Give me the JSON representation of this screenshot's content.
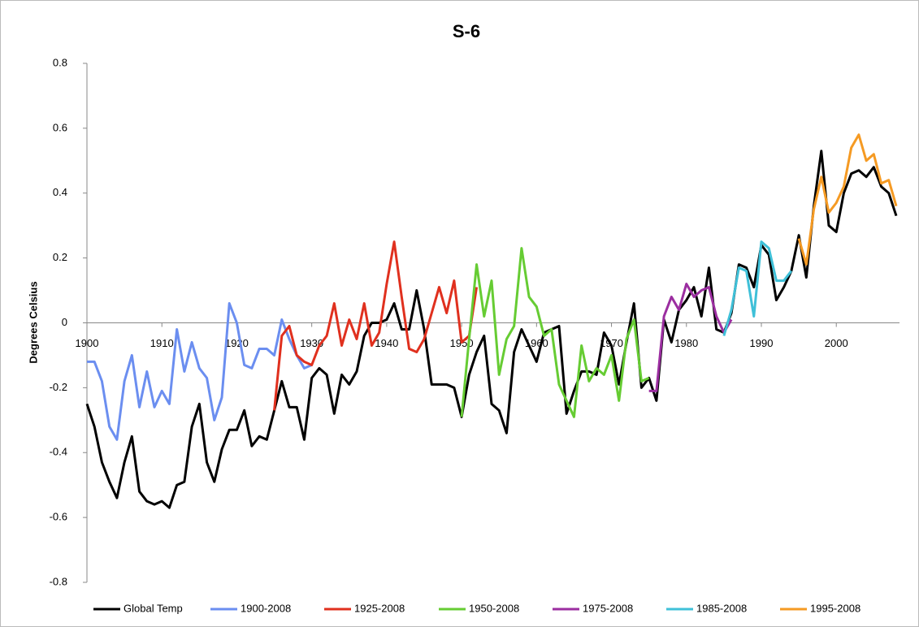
{
  "chart_data": {
    "type": "line",
    "title": "S-6",
    "y_label": "Degrees Celsius",
    "xlim": [
      1900,
      2008
    ],
    "xticks": [
      1900,
      1910,
      1920,
      1930,
      1940,
      1950,
      1960,
      1970,
      1980,
      1990,
      2000
    ],
    "ylim": [
      -0.8,
      0.8
    ],
    "yticks": [
      -0.8,
      -0.6,
      -0.4,
      -0.2,
      0,
      0.2,
      0.4,
      0.6,
      0.8
    ],
    "grid": false,
    "legend": "bottom",
    "x": [
      1900,
      1901,
      1902,
      1903,
      1904,
      1905,
      1906,
      1907,
      1908,
      1909,
      1910,
      1911,
      1912,
      1913,
      1914,
      1915,
      1916,
      1917,
      1918,
      1919,
      1920,
      1921,
      1922,
      1923,
      1924,
      1925,
      1926,
      1927,
      1928,
      1929,
      1930,
      1931,
      1932,
      1933,
      1934,
      1935,
      1936,
      1937,
      1938,
      1939,
      1940,
      1941,
      1942,
      1943,
      1944,
      1945,
      1946,
      1947,
      1948,
      1949,
      1950,
      1951,
      1952,
      1953,
      1954,
      1955,
      1956,
      1957,
      1958,
      1959,
      1960,
      1961,
      1962,
      1963,
      1964,
      1965,
      1966,
      1967,
      1968,
      1969,
      1970,
      1971,
      1972,
      1973,
      1974,
      1975,
      1976,
      1977,
      1978,
      1979,
      1980,
      1981,
      1982,
      1983,
      1984,
      1985,
      1986,
      1987,
      1988,
      1989,
      1990,
      1991,
      1992,
      1993,
      1994,
      1995,
      1996,
      1997,
      1998,
      1999,
      2000,
      2001,
      2002,
      2003,
      2004,
      2005,
      2006,
      2007,
      2008
    ],
    "series": [
      {
        "name": "Global Temp",
        "color": "#000000",
        "values": [
          -0.25,
          -0.32,
          -0.43,
          -0.49,
          -0.54,
          -0.43,
          -0.35,
          -0.52,
          -0.55,
          -0.56,
          -0.55,
          -0.57,
          -0.5,
          -0.49,
          -0.32,
          -0.25,
          -0.43,
          -0.49,
          -0.39,
          -0.33,
          -0.33,
          -0.27,
          -0.38,
          -0.35,
          -0.36,
          -0.27,
          -0.18,
          -0.26,
          -0.26,
          -0.36,
          -0.17,
          -0.14,
          -0.16,
          -0.28,
          -0.16,
          -0.19,
          -0.15,
          -0.04,
          0,
          0,
          0.01,
          0.06,
          -0.02,
          -0.02,
          0.1,
          -0.02,
          -0.19,
          -0.19,
          -0.19,
          -0.2,
          -0.29,
          -0.16,
          -0.09,
          -0.04,
          -0.25,
          -0.27,
          -0.34,
          -0.09,
          -0.02,
          -0.07,
          -0.12,
          -0.03,
          -0.02,
          -0.01,
          -0.28,
          -0.21,
          -0.15,
          -0.15,
          -0.16,
          -0.03,
          -0.07,
          -0.19,
          -0.06,
          0.06,
          -0.2,
          -0.17,
          -0.24,
          0.01,
          -0.06,
          0.04,
          0.07,
          0.11,
          0.02,
          0.17,
          -0.02,
          -0.03,
          0.03,
          0.18,
          0.17,
          0.11,
          0.24,
          0.21,
          0.07,
          0.11,
          0.16,
          0.27,
          0.14,
          0.36,
          0.53,
          0.3,
          0.28,
          0.4,
          0.46,
          0.47,
          0.45,
          0.48,
          0.42,
          0.4,
          0.33
        ]
      },
      {
        "name": "1900-2008",
        "color": "#6b8ef0",
        "values": [
          -0.12,
          -0.12,
          -0.18,
          -0.32,
          -0.36,
          -0.18,
          -0.1,
          -0.26,
          -0.15,
          -0.26,
          -0.21,
          -0.25,
          -0.02,
          -0.15,
          -0.06,
          -0.14,
          -0.17,
          -0.3,
          -0.23,
          0.06,
          0,
          -0.13,
          -0.14,
          -0.08,
          -0.08,
          -0.1,
          0.01,
          -0.05,
          -0.1,
          -0.14,
          -0.13,
          null,
          null,
          null,
          null,
          null,
          null,
          null,
          null,
          null,
          null,
          null,
          null,
          null,
          null,
          null,
          null,
          null,
          null,
          null,
          null,
          null,
          null,
          null,
          null,
          null,
          null,
          null,
          null,
          null,
          null,
          null,
          null,
          null,
          null,
          null,
          null,
          null,
          null,
          null,
          null,
          null,
          null,
          null,
          null,
          null,
          null,
          null,
          null,
          null,
          null,
          null,
          null,
          null,
          null,
          null,
          null,
          null,
          null,
          null,
          null,
          null,
          null,
          null,
          null,
          null,
          null,
          null,
          null,
          null,
          null,
          null,
          null,
          null,
          null,
          null,
          null,
          null,
          null
        ]
      },
      {
        "name": "1925-2008",
        "color": "#e0301e",
        "values": [
          null,
          null,
          null,
          null,
          null,
          null,
          null,
          null,
          null,
          null,
          null,
          null,
          null,
          null,
          null,
          null,
          null,
          null,
          null,
          null,
          null,
          null,
          null,
          null,
          null,
          -0.27,
          -0.04,
          -0.01,
          -0.1,
          -0.12,
          -0.13,
          -0.07,
          -0.04,
          0.06,
          -0.07,
          0.01,
          -0.05,
          0.06,
          -0.07,
          -0.03,
          0.12,
          0.25,
          0.08,
          -0.08,
          -0.09,
          -0.05,
          0.03,
          0.11,
          0.03,
          0.13,
          -0.06,
          -0.04,
          0.11,
          null,
          null,
          null,
          null,
          null,
          null,
          null,
          null,
          null,
          null,
          null,
          null,
          null,
          null,
          null,
          null,
          null,
          null,
          null,
          null,
          null,
          null,
          null,
          null,
          null,
          null,
          null,
          null,
          null,
          null,
          null,
          null,
          null,
          null,
          null,
          null,
          null,
          null,
          null,
          null,
          null,
          null,
          null,
          null,
          null,
          null,
          null,
          null,
          null,
          null,
          null,
          null,
          null,
          null,
          null,
          null
        ]
      },
      {
        "name": "1950-2008",
        "color": "#66cc33",
        "values": [
          null,
          null,
          null,
          null,
          null,
          null,
          null,
          null,
          null,
          null,
          null,
          null,
          null,
          null,
          null,
          null,
          null,
          null,
          null,
          null,
          null,
          null,
          null,
          null,
          null,
          null,
          null,
          null,
          null,
          null,
          null,
          null,
          null,
          null,
          null,
          null,
          null,
          null,
          null,
          null,
          null,
          null,
          null,
          null,
          null,
          null,
          null,
          null,
          null,
          null,
          -0.29,
          -0.05,
          0.18,
          0.02,
          0.13,
          -0.16,
          -0.05,
          -0.01,
          0.23,
          0.08,
          0.05,
          -0.04,
          -0.02,
          -0.19,
          -0.24,
          -0.29,
          -0.07,
          -0.18,
          -0.14,
          -0.16,
          -0.1,
          -0.24,
          -0.05,
          0.01,
          -0.18,
          -0.17,
          null,
          null,
          null,
          null,
          null,
          null,
          null,
          null,
          null,
          null,
          null,
          null,
          null,
          null,
          null,
          null,
          null,
          null,
          null,
          null,
          null,
          null,
          null,
          null,
          null,
          null,
          null,
          null,
          null,
          null,
          null,
          null,
          null
        ]
      },
      {
        "name": "1975-2008",
        "color": "#9b2ea0",
        "values": [
          null,
          null,
          null,
          null,
          null,
          null,
          null,
          null,
          null,
          null,
          null,
          null,
          null,
          null,
          null,
          null,
          null,
          null,
          null,
          null,
          null,
          null,
          null,
          null,
          null,
          null,
          null,
          null,
          null,
          null,
          null,
          null,
          null,
          null,
          null,
          null,
          null,
          null,
          null,
          null,
          null,
          null,
          null,
          null,
          null,
          null,
          null,
          null,
          null,
          null,
          null,
          null,
          null,
          null,
          null,
          null,
          null,
          null,
          null,
          null,
          null,
          null,
          null,
          null,
          null,
          null,
          null,
          null,
          null,
          null,
          null,
          null,
          null,
          null,
          null,
          -0.21,
          -0.21,
          0.02,
          0.08,
          0.04,
          0.12,
          0.08,
          0.1,
          0.11,
          0.02,
          -0.03,
          0.01,
          null,
          null,
          null,
          null,
          null,
          null,
          null,
          null,
          null,
          null,
          null,
          null,
          null,
          null,
          null,
          null,
          null,
          null,
          null,
          null,
          null,
          null
        ]
      },
      {
        "name": "1985-2008",
        "color": "#3fc0d8",
        "values": [
          null,
          null,
          null,
          null,
          null,
          null,
          null,
          null,
          null,
          null,
          null,
          null,
          null,
          null,
          null,
          null,
          null,
          null,
          null,
          null,
          null,
          null,
          null,
          null,
          null,
          null,
          null,
          null,
          null,
          null,
          null,
          null,
          null,
          null,
          null,
          null,
          null,
          null,
          null,
          null,
          null,
          null,
          null,
          null,
          null,
          null,
          null,
          null,
          null,
          null,
          null,
          null,
          null,
          null,
          null,
          null,
          null,
          null,
          null,
          null,
          null,
          null,
          null,
          null,
          null,
          null,
          null,
          null,
          null,
          null,
          null,
          null,
          null,
          null,
          null,
          null,
          null,
          null,
          null,
          null,
          null,
          null,
          null,
          null,
          null,
          -0.04,
          0.04,
          0.17,
          0.16,
          0.02,
          0.25,
          0.23,
          0.13,
          0.13,
          0.16,
          null,
          null,
          null,
          null,
          null,
          null,
          null,
          null,
          null,
          null,
          null,
          null,
          null,
          null
        ]
      },
      {
        "name": "1995-2008",
        "color": "#f59a23",
        "values": [
          null,
          null,
          null,
          null,
          null,
          null,
          null,
          null,
          null,
          null,
          null,
          null,
          null,
          null,
          null,
          null,
          null,
          null,
          null,
          null,
          null,
          null,
          null,
          null,
          null,
          null,
          null,
          null,
          null,
          null,
          null,
          null,
          null,
          null,
          null,
          null,
          null,
          null,
          null,
          null,
          null,
          null,
          null,
          null,
          null,
          null,
          null,
          null,
          null,
          null,
          null,
          null,
          null,
          null,
          null,
          null,
          null,
          null,
          null,
          null,
          null,
          null,
          null,
          null,
          null,
          null,
          null,
          null,
          null,
          null,
          null,
          null,
          null,
          null,
          null,
          null,
          null,
          null,
          null,
          null,
          null,
          null,
          null,
          null,
          null,
          null,
          null,
          null,
          null,
          null,
          null,
          null,
          null,
          null,
          null,
          0.26,
          0.18,
          0.35,
          0.45,
          0.34,
          0.37,
          0.42,
          0.54,
          0.58,
          0.5,
          0.52,
          0.43,
          0.44,
          0.36
        ]
      }
    ]
  }
}
